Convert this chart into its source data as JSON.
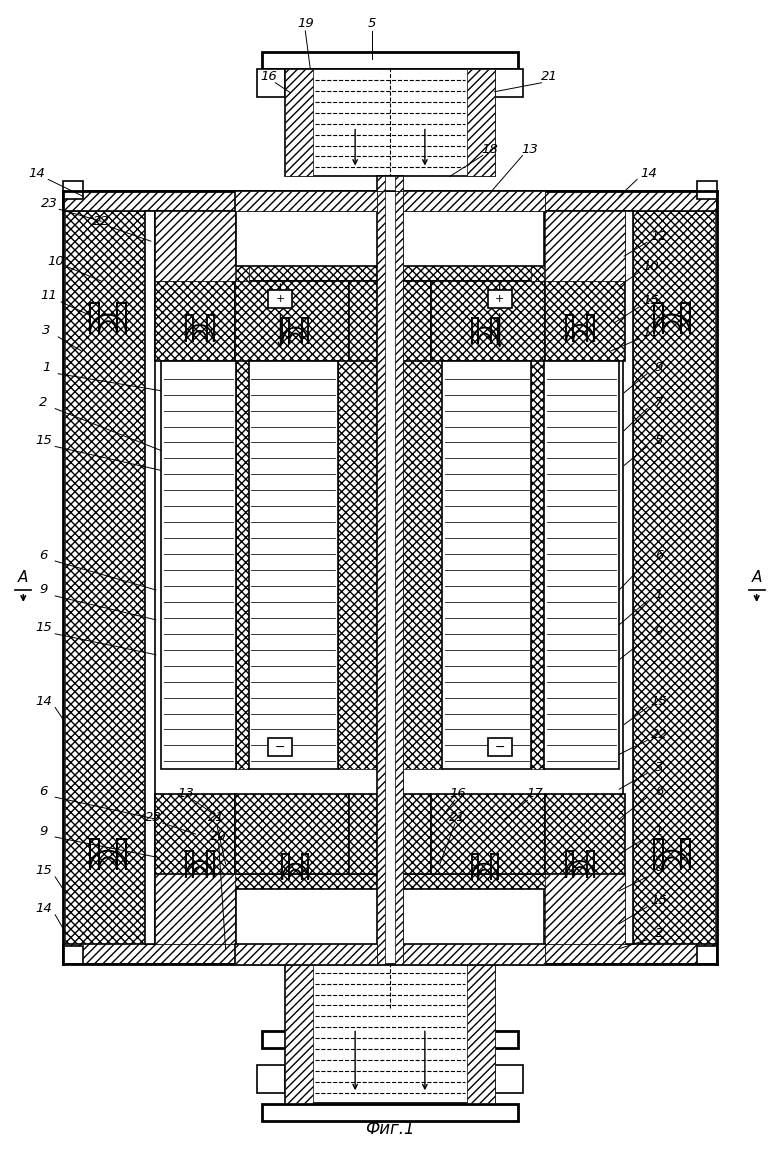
{
  "title": "Фиг.1",
  "bg_color": "#ffffff",
  "fig_width": 7.8,
  "fig_height": 11.5,
  "dpi": 100
}
